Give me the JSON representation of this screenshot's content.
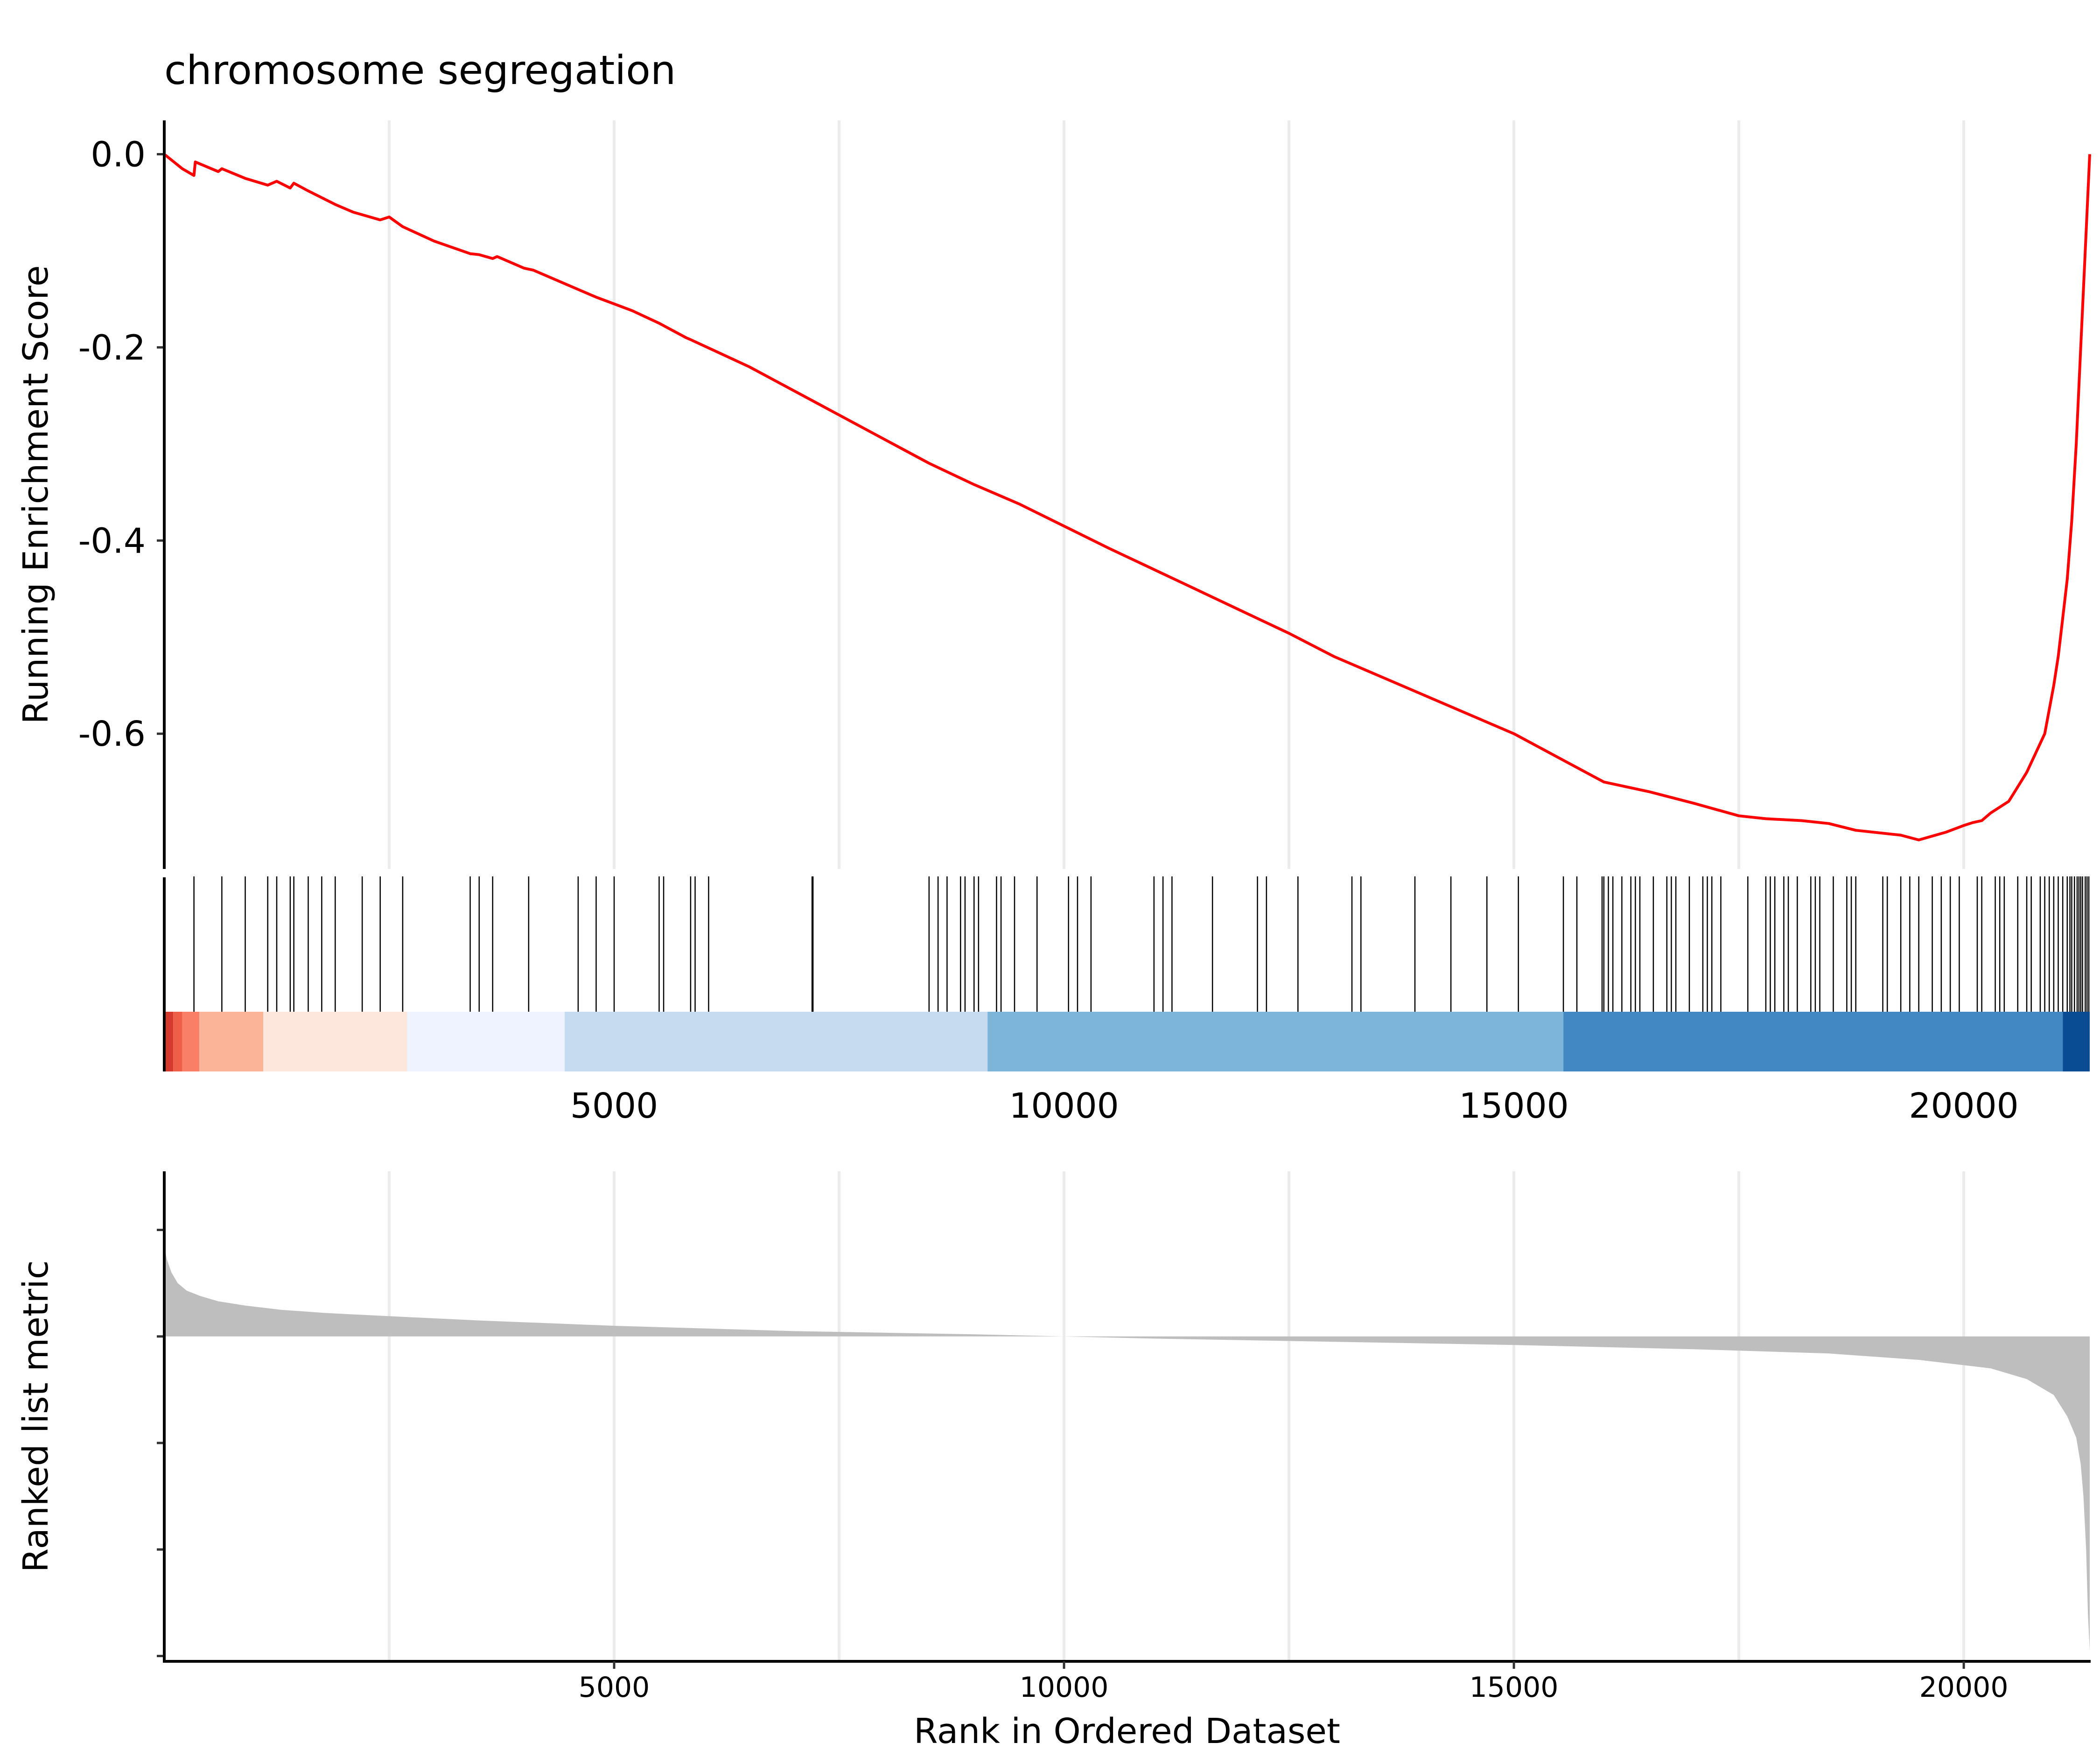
{
  "chart_data": [
    {
      "type": "line",
      "title": "chromosome segregation",
      "ylabel": "Running Enrichment Score",
      "xlim": [
        0,
        21400
      ],
      "ylim": [
        -0.74,
        0.035
      ],
      "y_ticks": [
        0.0,
        -0.2,
        -0.4,
        -0.6
      ],
      "y_tick_labels": [
        "0.0",
        "-0.2",
        "-0.4",
        "-0.6"
      ],
      "x_gridlines": [
        2500,
        5000,
        7500,
        10000,
        12500,
        15000,
        17500,
        20000
      ],
      "grid": "vertical-major",
      "line_color": "#FF0000",
      "series": [
        {
          "x": [
            0,
            200,
            330,
            345,
            600,
            640,
            900,
            1150,
            1250,
            1400,
            1440,
            1600,
            1750,
            1900,
            2100,
            2400,
            2500,
            2650,
            3000,
            3400,
            3500,
            3650,
            3700,
            4000,
            4100,
            4400,
            4600,
            4800,
            5000,
            5200,
            5500,
            5800,
            5850,
            6500,
            7200,
            8000,
            8500,
            9000,
            9500,
            10000,
            10500,
            11000,
            11500,
            12000,
            12500,
            13000,
            13500,
            14000,
            14500,
            15000,
            15500,
            16000,
            16500,
            17000,
            17500,
            17800,
            18200,
            18500,
            18800,
            19300,
            19500,
            19800,
            20000,
            20100,
            20200,
            20300,
            20500,
            20600,
            20700,
            20800,
            20900,
            21000,
            21050,
            21100,
            21150,
            21200,
            21250,
            21300,
            21350,
            21400
          ],
          "y": [
            0.0,
            -0.015,
            -0.022,
            -0.008,
            -0.018,
            -0.015,
            -0.025,
            -0.032,
            -0.028,
            -0.035,
            -0.03,
            -0.038,
            -0.045,
            -0.052,
            -0.06,
            -0.068,
            -0.065,
            -0.075,
            -0.09,
            -0.103,
            -0.104,
            -0.108,
            -0.106,
            -0.118,
            -0.12,
            -0.132,
            -0.14,
            -0.148,
            -0.155,
            -0.162,
            -0.175,
            -0.19,
            -0.192,
            -0.22,
            -0.255,
            -0.295,
            -0.32,
            -0.342,
            -0.362,
            -0.385,
            -0.408,
            -0.43,
            -0.452,
            -0.474,
            -0.496,
            -0.52,
            -0.54,
            -0.56,
            -0.58,
            -0.6,
            -0.625,
            -0.65,
            -0.66,
            -0.672,
            -0.685,
            -0.688,
            -0.69,
            -0.693,
            -0.7,
            -0.705,
            -0.71,
            -0.702,
            -0.695,
            -0.692,
            -0.69,
            -0.682,
            -0.67,
            -0.655,
            -0.64,
            -0.62,
            -0.6,
            -0.55,
            -0.52,
            -0.48,
            -0.44,
            -0.38,
            -0.3,
            -0.2,
            -0.1,
            0.0
          ]
        }
      ]
    },
    {
      "type": "barcode",
      "xlim": [
        0,
        21400
      ],
      "x_ticks": [
        5000,
        10000,
        15000,
        20000
      ],
      "x_tick_labels": [
        "5000",
        "10000",
        "15000",
        "20000"
      ],
      "hits": [
        330,
        640,
        900,
        1150,
        1250,
        1400,
        1440,
        1600,
        1750,
        1900,
        2200,
        2400,
        2650,
        3400,
        3500,
        3650,
        4050,
        4600,
        4800,
        5000,
        5500,
        5550,
        5850,
        5900,
        6050,
        7200,
        7210,
        8500,
        8600,
        8700,
        8850,
        8900,
        9000,
        9050,
        9250,
        9300,
        9450,
        9700,
        10050,
        10150,
        10300,
        11000,
        11100,
        11200,
        11650,
        12150,
        12250,
        12600,
        13200,
        13300,
        13900,
        14300,
        14700,
        15050,
        15550,
        15700,
        15980,
        16000,
        16050,
        16100,
        16200,
        16300,
        16350,
        16400,
        16550,
        16700,
        16750,
        16800,
        16950,
        17100,
        17150,
        17200,
        17300,
        17600,
        17800,
        17850,
        17900,
        18000,
        18050,
        18150,
        18300,
        18350,
        18400,
        18550,
        18700,
        18750,
        18800,
        19100,
        19150,
        19300,
        19400,
        19500,
        19650,
        19750,
        19850,
        19950,
        20150,
        20200,
        20350,
        20400,
        20450,
        20600,
        20700,
        20750,
        20850,
        20900,
        20950,
        21000,
        21050,
        21100,
        21150,
        21180,
        21200,
        21230,
        21260,
        21280,
        21300,
        21320,
        21350,
        21370,
        21390
      ],
      "color_bands": [
        {
          "start": 0,
          "end": 100,
          "color": "#D63A2E"
        },
        {
          "start": 100,
          "end": 200,
          "color": "#EF5E49"
        },
        {
          "start": 200,
          "end": 390,
          "color": "#F97F66"
        },
        {
          "start": 390,
          "end": 1100,
          "color": "#FCB499"
        },
        {
          "start": 1100,
          "end": 2700,
          "color": "#FDE6DC"
        },
        {
          "start": 2700,
          "end": 4450,
          "color": "#EFF3FF"
        },
        {
          "start": 4450,
          "end": 9150,
          "color": "#C6DBEF"
        },
        {
          "start": 9150,
          "end": 15550,
          "color": "#7CB4DA"
        },
        {
          "start": 15550,
          "end": 21100,
          "color": "#4189C3"
        },
        {
          "start": 21100,
          "end": 21400,
          "color": "#0A4C93"
        }
      ]
    },
    {
      "type": "area",
      "ylabel": "Ranked list metric",
      "xlabel": "Rank in Ordered Dataset",
      "xlim": [
        0,
        21400
      ],
      "ylim": [
        -3.05,
        1.55
      ],
      "y_ticks": [
        1,
        0,
        -1,
        -2,
        -3
      ],
      "x_ticks": [
        5000,
        10000,
        15000,
        20000
      ],
      "x_tick_labels": [
        "5000",
        "10000",
        "15000",
        "20000"
      ],
      "x_gridlines": [
        2500,
        5000,
        7500,
        10000,
        12500,
        15000,
        17500,
        20000
      ],
      "fill_color": "#BEBEBE",
      "series": [
        {
          "x": [
            0,
            30,
            80,
            150,
            250,
            400,
            600,
            900,
            1300,
            1800,
            2500,
            3500,
            5000,
            7000,
            9000,
            10000,
            11000,
            13000,
            15000,
            17000,
            18500,
            19500,
            20300,
            20700,
            21000,
            21150,
            21250,
            21300,
            21330,
            21360,
            21380,
            21400
          ],
          "y": [
            0.85,
            0.72,
            0.6,
            0.5,
            0.43,
            0.38,
            0.33,
            0.29,
            0.25,
            0.22,
            0.19,
            0.15,
            0.1,
            0.05,
            0.02,
            0.0,
            -0.02,
            -0.05,
            -0.08,
            -0.12,
            -0.16,
            -0.22,
            -0.3,
            -0.4,
            -0.55,
            -0.75,
            -0.95,
            -1.2,
            -1.5,
            -2.0,
            -2.6,
            -2.95
          ]
        }
      ]
    }
  ]
}
